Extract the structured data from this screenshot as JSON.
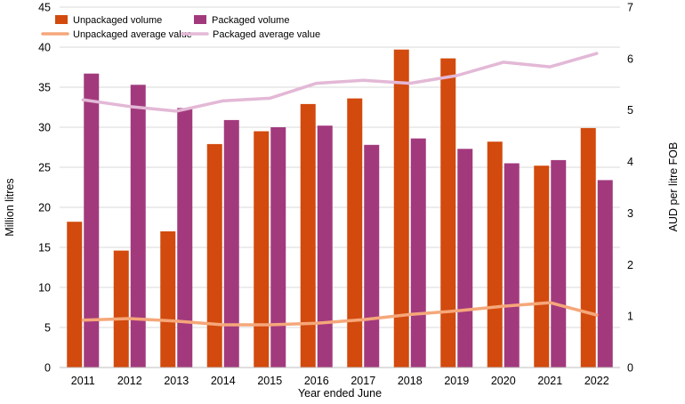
{
  "chart_data": {
    "type": "bar",
    "categories": [
      "2011",
      "2012",
      "2013",
      "2014",
      "2015",
      "2016",
      "2017",
      "2018",
      "2019",
      "2020",
      "2021",
      "2022"
    ],
    "series": [
      {
        "name": "Unpackaged volume",
        "kind": "bar",
        "axis": "left",
        "color": "#d24a0d",
        "values": [
          18.2,
          14.6,
          17.0,
          27.9,
          29.5,
          32.9,
          33.6,
          39.7,
          38.6,
          28.2,
          25.2,
          29.9
        ]
      },
      {
        "name": "Packaged volume",
        "kind": "bar",
        "axis": "left",
        "color": "#a2397d",
        "values": [
          36.7,
          35.3,
          32.4,
          30.9,
          30.0,
          30.2,
          27.8,
          28.6,
          27.3,
          25.5,
          25.9,
          23.4
        ]
      },
      {
        "name": "Unpackaged average value",
        "kind": "line",
        "axis": "right",
        "color": "#f5a77a",
        "values": [
          0.92,
          0.95,
          0.9,
          0.83,
          0.83,
          0.86,
          0.93,
          1.03,
          1.1,
          1.19,
          1.26,
          1.02
        ]
      },
      {
        "name": "Packaged average value",
        "kind": "line",
        "axis": "right",
        "color": "#e3b8d6",
        "values": [
          5.2,
          5.07,
          4.98,
          5.18,
          5.23,
          5.52,
          5.58,
          5.52,
          5.67,
          5.93,
          5.84,
          6.1
        ]
      }
    ],
    "xlabel": "Year ended June",
    "ylabel": "Million litres",
    "y2label": "AUD per litre FOB",
    "ylim": [
      0,
      45
    ],
    "y2lim": [
      0,
      7
    ],
    "yticks": [
      "0",
      "5",
      "10",
      "15",
      "20",
      "25",
      "30",
      "35",
      "40",
      "45"
    ],
    "y2ticks": [
      "0",
      "1",
      "2",
      "3",
      "4",
      "5",
      "6",
      "7"
    ],
    "grid": "horizontal",
    "legend_position": "top-left"
  }
}
